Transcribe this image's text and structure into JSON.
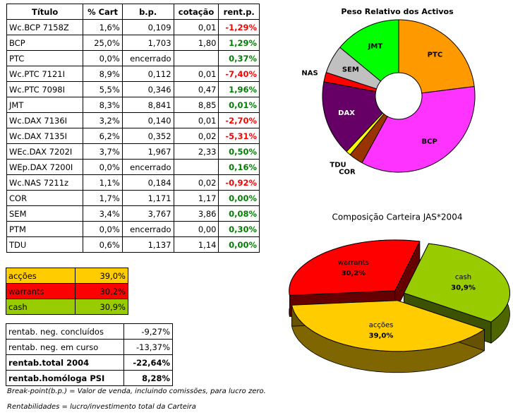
{
  "table": {
    "header": [
      "Título",
      "% Cart",
      "b.p.",
      "cotação",
      "rent.p."
    ],
    "rows": [
      [
        "Wc.BCP 7158Z",
        "1,6%",
        "0,109",
        "0,01",
        "-1,29%"
      ],
      [
        "BCP",
        "25,0%",
        "1,703",
        "1,80",
        "1,29%"
      ],
      [
        "PTC",
        "0,0%",
        "encerrado",
        "",
        "0,37%"
      ],
      [
        "Wc.PTC 7121I",
        "8,9%",
        "0,112",
        "0,01",
        "-7,40%"
      ],
      [
        "Wc.PTC 7098I",
        "5,5%",
        "0,346",
        "0,47",
        "1,96%"
      ],
      [
        "JMT",
        "8,3%",
        "8,841",
        "8,85",
        "0,01%"
      ],
      [
        "Wc.DAX 7136I",
        "3,2%",
        "0,140",
        "0,01",
        "-2,70%"
      ],
      [
        "Wc.DAX 7135I",
        "6,2%",
        "0,352",
        "0,02",
        "-5,31%"
      ],
      [
        "WEc.DAX 7202I",
        "3,7%",
        "1,967",
        "2,33",
        "0,50%"
      ],
      [
        "WEp.DAX 7200I",
        "0,0%",
        "encerrado",
        "",
        "0,16%"
      ],
      [
        "Wc.NAS 7211z",
        "1,1%",
        "0,184",
        "0,02",
        "-0,92%"
      ],
      [
        "COR",
        "1,7%",
        "1,171",
        "1,17",
        "0,00%"
      ],
      [
        "SEM",
        "3,4%",
        "3,767",
        "3,86",
        "0,08%"
      ],
      [
        "PTM",
        "0,0%",
        "encerrado",
        "0,00",
        "0,30%"
      ],
      [
        "TDU",
        "0,6%",
        "1,137",
        "1,14",
        "0,00%"
      ]
    ]
  },
  "allocation": {
    "rows": [
      [
        "acções",
        "39,0%"
      ],
      [
        "warrants",
        "30,2%"
      ],
      [
        "cash",
        "30,9%"
      ]
    ],
    "colors": [
      "#ffcc00",
      "#ff0000",
      "#99cc00"
    ]
  },
  "returns": {
    "rows": [
      [
        "rentab. neg. concluídos",
        "-9,27%"
      ],
      [
        "rentab. neg. em curso",
        "-13,37%"
      ],
      [
        "rentab.total 2004",
        "-22,64%"
      ],
      [
        "rentab.homóloga PSI",
        "8,28%"
      ]
    ]
  },
  "notes": [
    "Break-point(b.p.) = Valor de venda, incluindo comissões, para lucro zero.",
    "Rentabilidades = lucro/investimento total da Carteira"
  ],
  "chart_data": [
    {
      "type": "donut",
      "title": "Peso Relativo dos Activos",
      "categories": [
        "PTC",
        "BCP",
        "COR",
        "TDU",
        "DAX",
        "NAS",
        "SEM",
        "JMT"
      ],
      "values": [
        23,
        35,
        3,
        1,
        16,
        2,
        6,
        14
      ],
      "colors": [
        "#ff9900",
        "#ff33ff",
        "#993300",
        "#ffff00",
        "#660066",
        "#ff0000",
        "#c0c0c0",
        "#00ff00"
      ]
    },
    {
      "type": "pie3d",
      "title": "Composição Carteira JAS*2004",
      "categories": [
        "warrants",
        "cash",
        "acções"
      ],
      "values": [
        30.2,
        30.9,
        39.0
      ],
      "value_labels": [
        "30,2%",
        "30,9%",
        "39,0%"
      ],
      "colors": [
        "#ff0000",
        "#99cc00",
        "#ffcc00"
      ]
    }
  ]
}
